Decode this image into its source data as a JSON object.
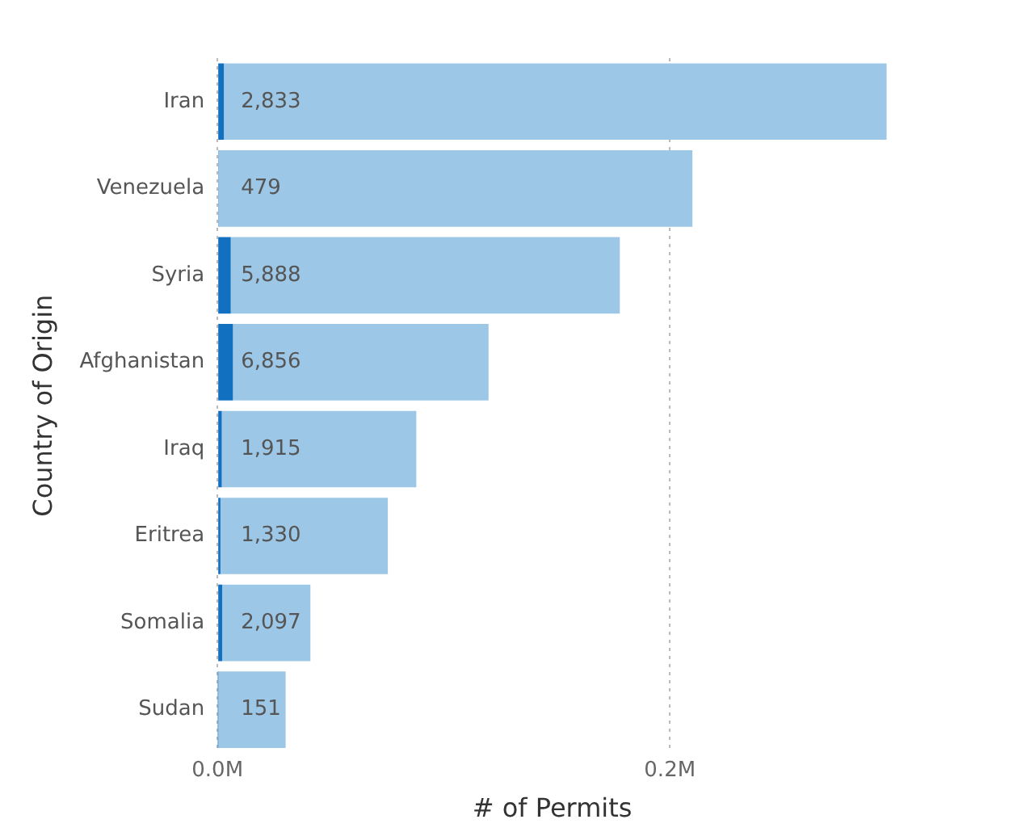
{
  "chart_data": {
    "type": "bar",
    "orientation": "horizontal",
    "stacked": true,
    "xlabel": "# of Permits",
    "ylabel": "Country of Origin",
    "categories": [
      "Iran",
      "Venezuela",
      "Syria",
      "Afghanistan",
      "Iraq",
      "Eritrea",
      "Somalia",
      "Sudan"
    ],
    "series": [
      {
        "color": "#1170c0",
        "values": [
          2833,
          479,
          5888,
          6856,
          1915,
          1330,
          2097,
          151
        ],
        "value_labels": [
          "2,833",
          "479",
          "5,888",
          "6,856",
          "1,915",
          "1,330",
          "2,097",
          "151"
        ]
      },
      {
        "color": "#9dc7e6",
        "values": [
          293000,
          209500,
          172000,
          113000,
          86000,
          74000,
          39000,
          30000
        ]
      }
    ],
    "xlim": [
      0,
      296000
    ],
    "xticks": [
      {
        "value": 0,
        "label": "0.0M"
      },
      {
        "value": 200000,
        "label": "0.2M"
      }
    ],
    "grid": "x",
    "legend": false
  }
}
